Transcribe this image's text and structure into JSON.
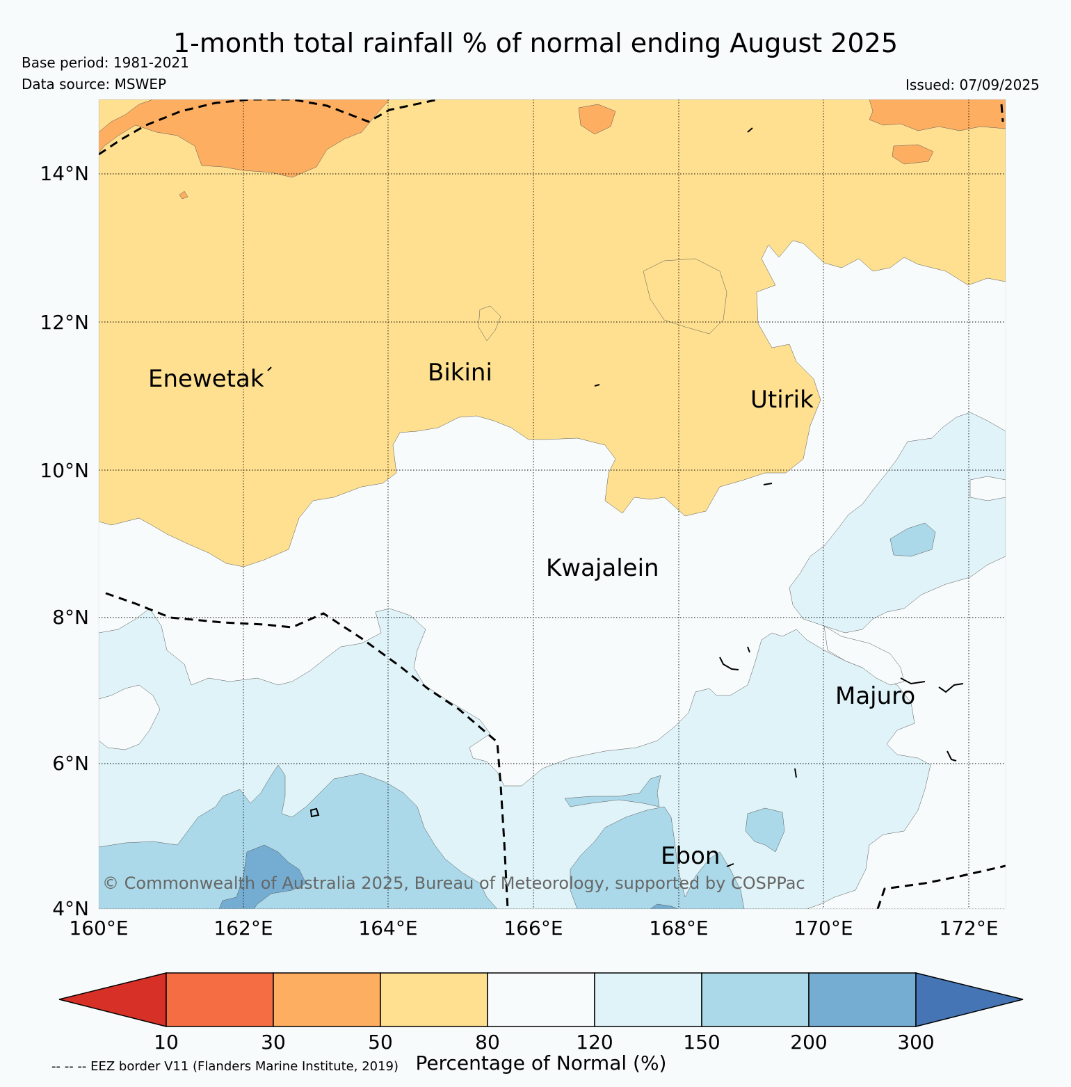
{
  "header": {
    "title": "1-month total rainfall % of normal ending August 2025",
    "base_period": "Base period: 1981-2021",
    "data_source": "Data source: MSWEP",
    "issued": "Issued: 07/09/2025"
  },
  "map": {
    "lon_ticks": [
      "160°E",
      "162°E",
      "164°E",
      "166°E",
      "168°E",
      "170°E",
      "172°E"
    ],
    "lat_ticks": [
      "14°N",
      "12°N",
      "10°N",
      "8°N",
      "6°N",
      "4°N"
    ],
    "lon_range": [
      160,
      172.5
    ],
    "lat_range": [
      4,
      15
    ],
    "places": [
      "Enewetak",
      "Bikini",
      "Utirik",
      "Kwajalein",
      "Majuro",
      "Ebon"
    ],
    "watermark": "© Commonwealth of Australia 2025, Bureau of Meteorology, supported by COSPPac"
  },
  "colorbar": {
    "title": "Percentage of Normal (%)",
    "levels": [
      "10",
      "30",
      "50",
      "80",
      "120",
      "150",
      "200",
      "300"
    ],
    "colors": [
      "#d73027",
      "#f46d43",
      "#fdae61",
      "#fee090",
      "#f7fbfc",
      "#e0f3f8",
      "#abd9e9",
      "#74add1",
      "#4575b4"
    ]
  },
  "footnote": "-- -- -- EEZ border V11 (Flanders Marine Institute, 2019)"
}
